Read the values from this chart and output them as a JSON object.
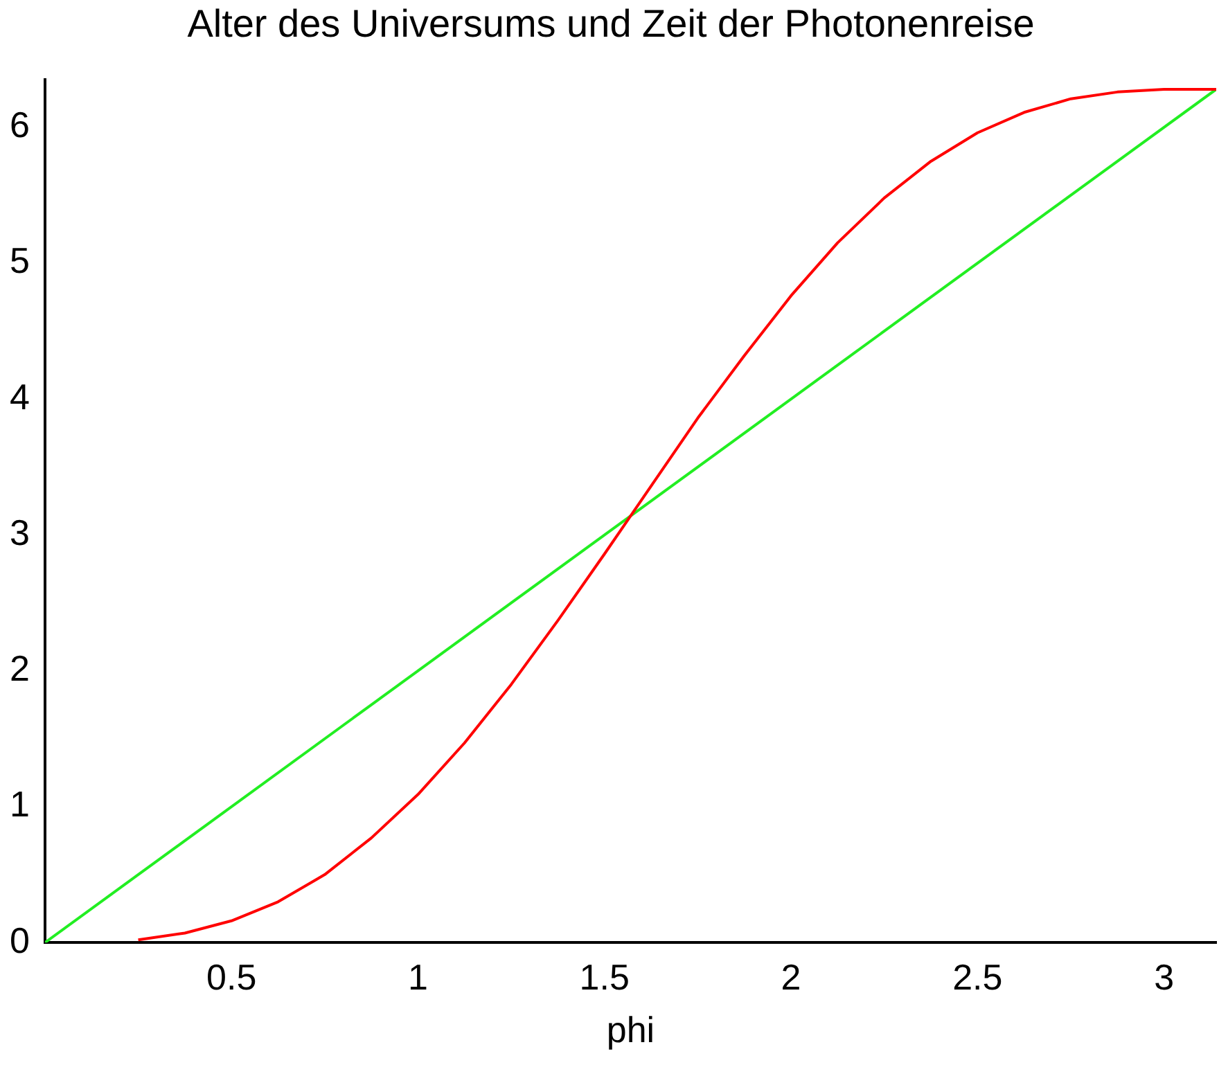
{
  "chart_data": {
    "type": "line",
    "title": "Alter des Universums und Zeit der Photonenreise",
    "xlabel": "phi",
    "xlim": [
      0,
      3.14
    ],
    "ylim": [
      0,
      6.35
    ],
    "xticks": [
      0.5,
      1,
      1.5,
      2,
      2.5,
      3
    ],
    "yticks": [
      0,
      1,
      2,
      3,
      4,
      5,
      6
    ],
    "grid": false,
    "legend": false,
    "marker": "none",
    "line_style": "solid",
    "series": [
      {
        "color": "#ff0000",
        "x": [
          0.25,
          0.375,
          0.5,
          0.625,
          0.75,
          0.875,
          1,
          1.125,
          1.25,
          1.375,
          1.5,
          1.625,
          1.75,
          1.875,
          2,
          2.125,
          2.25,
          2.375,
          2.5,
          2.625,
          2.75,
          2.875,
          3,
          3.14
        ],
        "values": [
          0.02,
          0.07,
          0.16,
          0.3,
          0.5,
          0.77,
          1.09,
          1.47,
          1.9,
          2.37,
          2.86,
          3.36,
          3.86,
          4.32,
          4.76,
          5.15,
          5.48,
          5.75,
          5.96,
          6.11,
          6.21,
          6.26,
          6.28,
          6.28
        ]
      },
      {
        "color": "#22ee22",
        "x": [
          0,
          3.14
        ],
        "values": [
          0,
          6.28
        ]
      }
    ]
  }
}
